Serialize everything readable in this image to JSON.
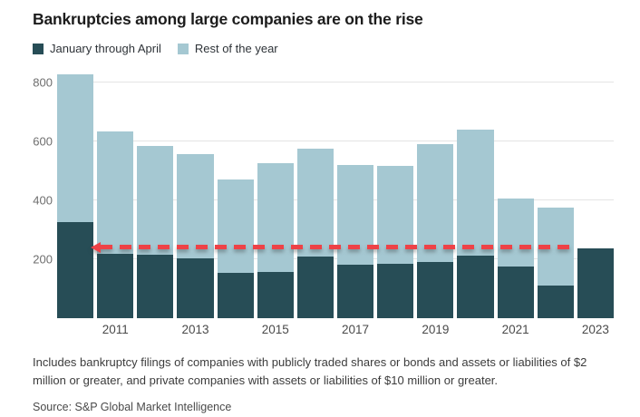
{
  "title": "Bankruptcies among large companies are on the rise",
  "legend": [
    {
      "label": "January through April",
      "color": "#274d56"
    },
    {
      "label": "Rest of the year",
      "color": "#a5c8d2"
    }
  ],
  "chart_data": {
    "type": "bar",
    "stacked": true,
    "title": "Bankruptcies among large companies are on the rise",
    "categories": [
      "2010",
      "2011",
      "2012",
      "2013",
      "2014",
      "2015",
      "2016",
      "2017",
      "2018",
      "2019",
      "2020",
      "2021",
      "2022",
      "2023"
    ],
    "series": [
      {
        "name": "January through April",
        "color": "#274d56",
        "values": [
          325,
          220,
          215,
          203,
          155,
          156,
          210,
          182,
          186,
          190,
          212,
          176,
          110,
          236
        ]
      },
      {
        "name": "Rest of the year",
        "color": "#a5c8d2",
        "values": [
          503,
          415,
          371,
          355,
          316,
          369,
          366,
          338,
          332,
          400,
          427,
          230,
          264,
          0
        ]
      }
    ],
    "totals": [
      828,
      635,
      586,
      558,
      471,
      525,
      576,
      520,
      518,
      590,
      639,
      406,
      374,
      236
    ],
    "x_tick_labels": [
      "2011",
      "2013",
      "2015",
      "2017",
      "2019",
      "2021",
      "2023"
    ],
    "y_ticks": [
      200,
      400,
      600,
      800
    ],
    "ylim": [
      0,
      840
    ],
    "grid": true,
    "legend_position": "top-left",
    "annotation": {
      "type": "dashed-arrow-left",
      "value": 240,
      "color": "#ee4247",
      "meaning": "2023 January-through-April level compared with prior years"
    }
  },
  "footnote": "Includes bankruptcy filings of companies with publicly traded shares or bonds and assets or liabilities of $2 million or greater, and private companies with assets or liabilities of $10 million or greater.",
  "source": "Source: S&P Global Market Intelligence"
}
